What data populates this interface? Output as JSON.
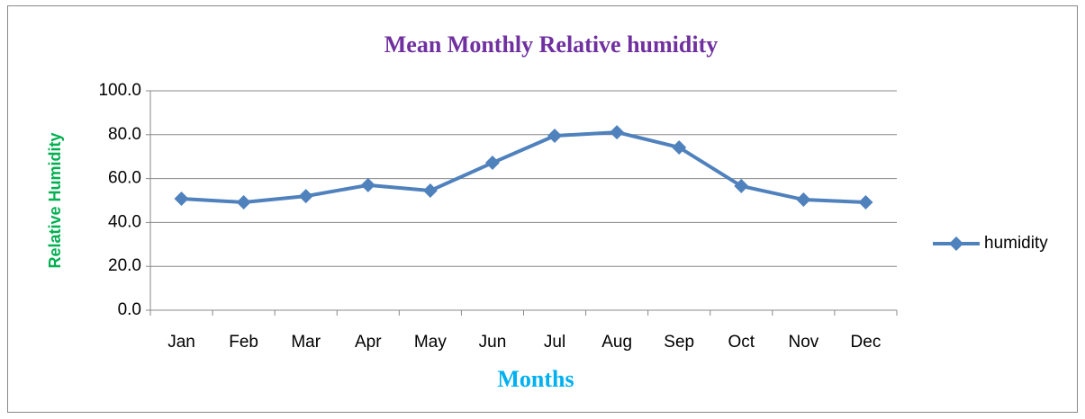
{
  "chart_data": {
    "type": "line",
    "title": "Mean Monthly Relative humidity",
    "x_label": "Months",
    "y_label": "Relative Humidity",
    "categories": [
      "Jan",
      "Feb",
      "Mar",
      "Apr",
      "May",
      "Jun",
      "Jul",
      "Aug",
      "Sep",
      "Oct",
      "Nov",
      "Dec"
    ],
    "series": [
      {
        "name": "humidity",
        "color": "#4f81bd",
        "values": [
          50.8,
          49.2,
          52.0,
          57.0,
          54.5,
          67.2,
          79.5,
          81.1,
          74.2,
          56.6,
          50.4,
          49.2
        ]
      }
    ],
    "ylim": [
      0,
      100
    ],
    "yticks": [
      {
        "value": 0,
        "label": "0.0"
      },
      {
        "value": 20,
        "label": "20.0"
      },
      {
        "value": 40,
        "label": "40.0"
      },
      {
        "value": 60,
        "label": "60.0"
      },
      {
        "value": 80,
        "label": "80.0"
      },
      {
        "value": 100,
        "label": "100.0"
      }
    ],
    "grid": true,
    "legend": "right"
  }
}
